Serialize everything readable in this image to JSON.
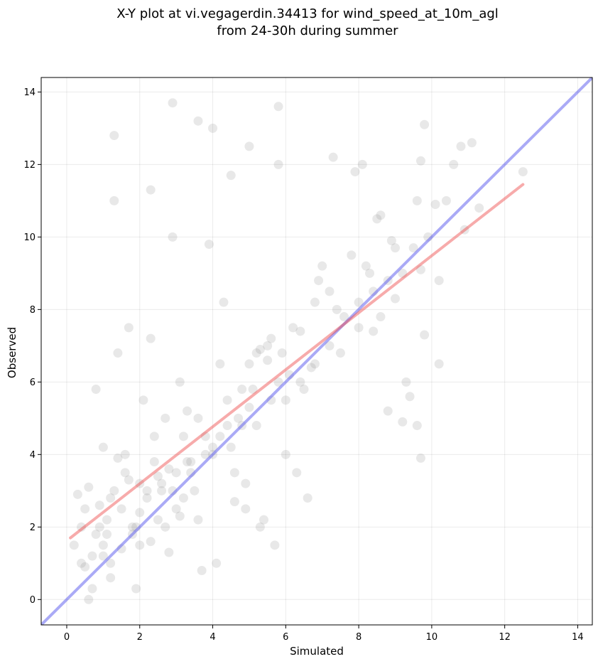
{
  "chart_data": {
    "type": "scatter",
    "title": "X-Y plot at vi.vegagerdin.34413 for wind_speed_at_10m_agl",
    "subtitle": "from 24-30h during summer",
    "xlabel": "Simulated",
    "ylabel": "Observed",
    "xlim": [
      -0.7,
      14.4
    ],
    "ylim": [
      -0.7,
      14.4
    ],
    "xticks": [
      "0",
      "2",
      "4",
      "6",
      "8",
      "10",
      "12",
      "14"
    ],
    "yticks": [
      "0",
      "2",
      "4",
      "6",
      "8",
      "10",
      "12",
      "14"
    ],
    "grid": true,
    "point_color": "#808080",
    "point_opacity": 0.18,
    "identity_line": {
      "x": [
        -0.7,
        14.4
      ],
      "y": [
        -0.7,
        14.4
      ],
      "color": "#5555ee",
      "opacity": 0.5
    },
    "fit_line": {
      "x": [
        0.1,
        12.5
      ],
      "y": [
        1.7,
        11.45
      ],
      "color": "#ee4444",
      "opacity": 0.45
    },
    "points": {
      "x": [
        1.3,
        2.9,
        3.6,
        5.8,
        4.0,
        1.3,
        5.0,
        9.8,
        10.8,
        11.1,
        9.7,
        12.5,
        2.3,
        4.5,
        5.8,
        7.3,
        7.9,
        8.1,
        10.6,
        10.9,
        11.3,
        9.6,
        10.1,
        10.4,
        9.5,
        9.9,
        10.2,
        9.7,
        9.8,
        9.3,
        9.4,
        10.2,
        9.0,
        8.9,
        8.5,
        8.6,
        8.2,
        9.6,
        9.7,
        8.0,
        8.4,
        8.8,
        9.2,
        0.2,
        0.4,
        0.5,
        0.7,
        0.9,
        1.1,
        0.3,
        0.6,
        0.8,
        1.0,
        1.2,
        0.6,
        1.5,
        1.8,
        2.0,
        2.2,
        1.6,
        1.9,
        2.5,
        2.6,
        2.8,
        3.0,
        3.2,
        2.4,
        2.7,
        3.4,
        3.6,
        3.8,
        1.4,
        1.7,
        2.1,
        2.3,
        3.1,
        3.3,
        4.0,
        4.2,
        4.5,
        4.8,
        5.0,
        5.2,
        5.5,
        4.3,
        4.6,
        4.9,
        5.3,
        5.6,
        5.9,
        6.2,
        6.5,
        6.8,
        7.0,
        7.2,
        7.5,
        6.0,
        6.3,
        6.6,
        5.7,
        5.4,
        4.1,
        3.7,
        3.9,
        2.9,
        1.3,
        1.0,
        0.8,
        1.2,
        1.6,
        2.0,
        2.4,
        2.8,
        3.2,
        3.6,
        4.0,
        4.4,
        4.8,
        5.2,
        5.6,
        6.0,
        6.4,
        6.8,
        7.2,
        7.6,
        8.0,
        8.4,
        8.8,
        9.2,
        3.0,
        3.5,
        4.7,
        5.1,
        6.9,
        7.8,
        8.3,
        0.5,
        1.1,
        1.9,
        2.6,
        3.4,
        4.2,
        5.8,
        6.7,
        7.4,
        8.6,
        9.0,
        2.2,
        2.5,
        2.9,
        3.3,
        2.0,
        1.8,
        1.5,
        1.2,
        1.0,
        0.7,
        3.8,
        4.4,
        5.0,
        5.3,
        5.5,
        6.1,
        6.4,
        4.9,
        4.6,
        3.1,
        2.7,
        2.3,
        1.7,
        1.4,
        0.9,
        0.4
      ],
      "y": [
        12.8,
        13.7,
        13.2,
        13.6,
        13.0,
        11.0,
        12.5,
        13.1,
        12.5,
        12.6,
        12.1,
        11.8,
        11.3,
        11.7,
        12.0,
        12.2,
        11.8,
        12.0,
        12.0,
        10.2,
        10.8,
        11.0,
        10.9,
        11.0,
        9.7,
        10.0,
        8.8,
        9.1,
        7.3,
        6.0,
        5.6,
        6.5,
        9.7,
        9.9,
        10.5,
        10.6,
        9.2,
        4.8,
        3.9,
        7.5,
        7.4,
        5.2,
        4.9,
        1.5,
        1.0,
        0.9,
        0.3,
        2.0,
        2.2,
        2.9,
        3.1,
        1.8,
        1.2,
        0.6,
        0.0,
        2.5,
        2.0,
        1.5,
        3.0,
        3.5,
        0.3,
        2.2,
        3.2,
        1.3,
        3.5,
        2.8,
        4.5,
        5.0,
        3.8,
        2.2,
        4.5,
        6.8,
        7.5,
        5.5,
        7.2,
        6.0,
        5.2,
        4.0,
        6.5,
        4.2,
        5.8,
        6.5,
        4.8,
        7.0,
        8.2,
        3.5,
        2.5,
        2.0,
        5.5,
        6.8,
        7.5,
        5.8,
        8.2,
        9.2,
        8.5,
        6.8,
        4.0,
        3.5,
        2.8,
        1.5,
        2.2,
        1.0,
        0.8,
        9.8,
        10.0,
        3.0,
        4.2,
        5.8,
        2.8,
        4.0,
        3.2,
        3.8,
        3.6,
        4.5,
        5.0,
        4.2,
        5.5,
        4.8,
        6.8,
        7.2,
        5.5,
        6.0,
        6.5,
        7.0,
        7.8,
        8.2,
        8.5,
        8.8,
        9.0,
        2.5,
        3.0,
        5.0,
        5.8,
        8.8,
        9.5,
        9.0,
        2.5,
        1.8,
        2.0,
        3.0,
        3.5,
        4.5,
        6.0,
        6.4,
        8.0,
        7.8,
        8.3,
        2.8,
        3.4,
        3.0,
        3.8,
        2.4,
        1.8,
        1.4,
        1.0,
        1.5,
        1.2,
        4.0,
        4.8,
        5.3,
        6.9,
        6.6,
        6.2,
        7.4,
        3.2,
        2.7,
        2.3,
        2.0,
        1.6,
        3.3,
        3.9,
        2.6,
        2.0
      ]
    }
  }
}
